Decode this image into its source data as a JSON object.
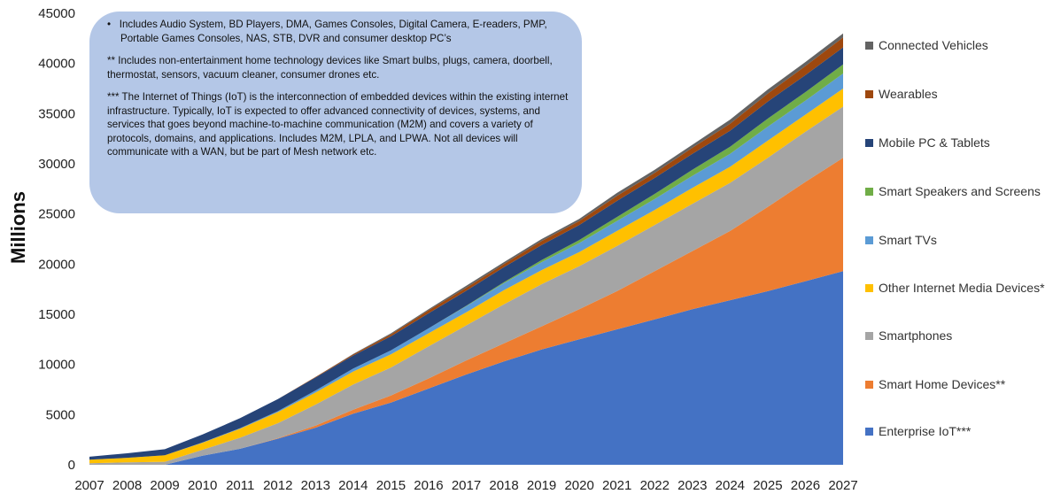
{
  "chart_data": {
    "type": "area",
    "stacked": true,
    "ylabel": "Millions",
    "xlabel": "",
    "ylim": [
      0,
      45000
    ],
    "yticks": [
      0,
      5000,
      10000,
      15000,
      20000,
      25000,
      30000,
      35000,
      40000,
      45000
    ],
    "x": [
      "2007",
      "2008",
      "2009",
      "2010",
      "2011",
      "2012",
      "2013",
      "2014",
      "2015",
      "2016",
      "2017",
      "2018",
      "2019",
      "2020",
      "2021",
      "2022",
      "2023",
      "2024",
      "2025",
      "2026",
      "2027"
    ],
    "series": [
      {
        "name": "Enterprise IoT***",
        "color": "#4472c4",
        "values": [
          0,
          0,
          0,
          900,
          1600,
          2600,
          3700,
          5100,
          6200,
          7600,
          9000,
          10300,
          11500,
          12500,
          13500,
          14500,
          15500,
          16400,
          17300,
          18300,
          19300
        ]
      },
      {
        "name": "Smart Home Devices**",
        "color": "#ed7d31",
        "values": [
          0,
          0,
          0,
          0,
          0,
          50,
          200,
          400,
          700,
          1000,
          1400,
          1800,
          2300,
          3000,
          3800,
          4800,
          5800,
          6900,
          8400,
          9900,
          11300
        ]
      },
      {
        "name": "Smartphones",
        "color": "#a5a5a5",
        "values": [
          150,
          250,
          300,
          600,
          1100,
          1500,
          2100,
          2500,
          2800,
          3200,
          3500,
          3900,
          4200,
          4300,
          4500,
          4600,
          4700,
          4800,
          4900,
          5000,
          5100
        ]
      },
      {
        "name": "Other Internet Media Devices*",
        "color": "#ffc000",
        "values": [
          350,
          450,
          650,
          700,
          900,
          1100,
          1200,
          1300,
          1300,
          1300,
          1300,
          1400,
          1400,
          1400,
          1500,
          1500,
          1600,
          1600,
          1700,
          1700,
          1800
        ]
      },
      {
        "name": "Smart TVs",
        "color": "#5b9bd5",
        "values": [
          0,
          0,
          0,
          20,
          50,
          100,
          200,
          300,
          400,
          500,
          600,
          700,
          800,
          900,
          1000,
          1100,
          1200,
          1300,
          1400,
          1400,
          1500
        ]
      },
      {
        "name": "Smart Speakers and Screens",
        "color": "#70ad47",
        "values": [
          0,
          0,
          0,
          0,
          0,
          0,
          0,
          0,
          0,
          0,
          50,
          100,
          200,
          300,
          400,
          500,
          600,
          700,
          800,
          850,
          900
        ]
      },
      {
        "name": "Mobile PC & Tablets",
        "color": "#264478",
        "values": [
          300,
          450,
          600,
          800,
          1000,
          1200,
          1300,
          1300,
          1400,
          1500,
          1500,
          1500,
          1500,
          1500,
          1600,
          1600,
          1600,
          1600,
          1700,
          1700,
          1700
        ]
      },
      {
        "name": "Wearables",
        "color": "#9e480e",
        "values": [
          0,
          0,
          0,
          0,
          0,
          0,
          50,
          100,
          200,
          300,
          300,
          300,
          400,
          400,
          500,
          500,
          600,
          700,
          800,
          900,
          1000
        ]
      },
      {
        "name": "Connected Vehicles",
        "color": "#636363",
        "values": [
          0,
          0,
          0,
          0,
          0,
          0,
          0,
          50,
          100,
          100,
          200,
          200,
          200,
          200,
          300,
          300,
          300,
          400,
          400,
          400,
          400
        ]
      }
    ],
    "legend_position": "right",
    "grid": false
  },
  "notes": [
    "•   Includes Audio System, BD Players, DMA, Games Consoles, Digital Camera, E-readers, PMP, Portable Games Consoles, NAS, STB, DVR and consumer desktop PC’s",
    "** Includes non-entertainment home technology devices like Smart bulbs, plugs, camera, doorbell, thermostat, sensors, vacuum cleaner, consumer drones etc.",
    "*** The Internet of Things (IoT) is the interconnection of embedded devices within the existing internet infrastructure. Typically, IoT is expected to offer advanced connectivity of devices, systems, and services that goes beyond machine-to-machine communication (M2M) and covers a variety of protocols, domains, and applications. Includes M2M, LPLA, and LPWA. Not all devices will communicate with a WAN, but be part of Mesh network etc."
  ]
}
